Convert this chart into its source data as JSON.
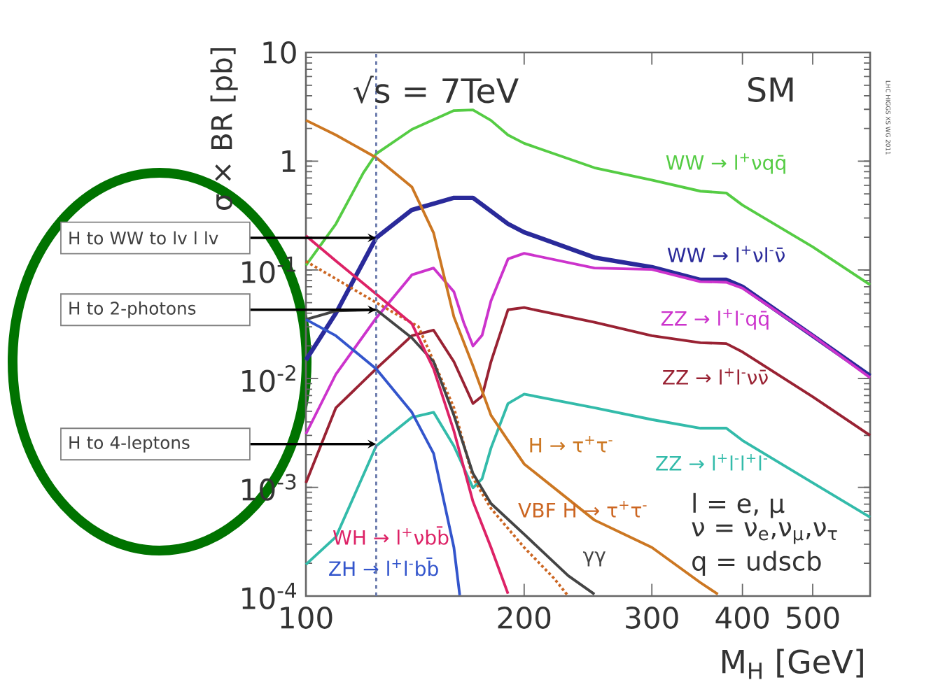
{
  "chart_data": {
    "type": "line",
    "xlabel": "M$_{H}$ [GeV]",
    "ylabel": "σ × BR [pb]",
    "log": "xy",
    "grid": false,
    "marker": "none",
    "xlim": [
      100,
      600
    ],
    "xticks": [
      100,
      200,
      300,
      400,
      500
    ],
    "ylim": [
      0.0001,
      10
    ],
    "yticks": [
      {
        "value": 0.0001,
        "label": "10$^{-4}$"
      },
      {
        "value": 0.001,
        "label": "10$^{-3}$"
      },
      {
        "value": 0.01,
        "label": "10$^{-2}$"
      },
      {
        "value": 0.1,
        "label": "10$^{-1}$"
      },
      1,
      10
    ],
    "ref_lines": [
      {
        "axis": "x",
        "value": 125,
        "color": "#6677aa",
        "line_style": "dashed"
      }
    ],
    "series": [
      {
        "name": "WW → l$^{+}$νqq̄",
        "color": "#55cc44",
        "x": [
          100,
          110,
          120,
          125,
          140,
          160,
          170,
          180,
          190,
          200,
          250,
          300,
          350,
          380,
          400,
          500,
          600
        ],
        "values": [
          0.11,
          0.265,
          0.78,
          1.17,
          1.96,
          2.92,
          2.96,
          2.37,
          1.74,
          1.46,
          0.87,
          0.67,
          0.53,
          0.51,
          0.395,
          0.163,
          0.073
        ]
      },
      {
        "name": "WW → l$^{+}$νl$^{-}$ν̄",
        "color": "#2a2a9a",
        "x": [
          100,
          110,
          125,
          140,
          160,
          170,
          190,
          200,
          250,
          300,
          350,
          380,
          400,
          500,
          600
        ],
        "values": [
          0.0148,
          0.04,
          0.197,
          0.356,
          0.46,
          0.46,
          0.265,
          0.222,
          0.13,
          0.106,
          0.081,
          0.081,
          0.07,
          0.0248,
          0.0106
        ]
      },
      {
        "name": "ZZ → l$^{+}$l$^{-}$qq̄",
        "color": "#cc33cc",
        "x": [
          100,
          110,
          125,
          140,
          150,
          160,
          165,
          170,
          175,
          180,
          190,
          200,
          250,
          300,
          350,
          380,
          400,
          500,
          600
        ],
        "values": [
          0.0031,
          0.011,
          0.036,
          0.09,
          0.104,
          0.063,
          0.033,
          0.02,
          0.025,
          0.052,
          0.126,
          0.142,
          0.104,
          0.101,
          0.078,
          0.077,
          0.068,
          0.0248,
          0.0102
        ]
      },
      {
        "name": "ZZ → l$^{+}$l$^{-}$νν̄",
        "color": "#992233",
        "x": [
          100,
          110,
          125,
          140,
          150,
          160,
          170,
          175,
          180,
          190,
          200,
          250,
          300,
          350,
          380,
          400,
          500,
          600
        ],
        "values": [
          0.0011,
          0.0054,
          0.0123,
          0.0248,
          0.0279,
          0.0143,
          0.0059,
          0.0069,
          0.0143,
          0.043,
          0.045,
          0.033,
          0.0248,
          0.0214,
          0.021,
          0.0176,
          0.0068,
          0.003
        ]
      },
      {
        "name": "ZZ → l$^{+}$l$^{-}$l$^{+}$l$^{-}$",
        "color": "#33bbaa",
        "x": [
          100,
          110,
          125,
          140,
          150,
          160,
          170,
          175,
          180,
          190,
          200,
          250,
          300,
          350,
          380,
          400,
          500,
          600
        ],
        "values": [
          0.000195,
          0.00035,
          0.0024,
          0.0044,
          0.0049,
          0.0024,
          0.00099,
          0.0012,
          0.0023,
          0.0059,
          0.0072,
          0.0054,
          0.0042,
          0.0035,
          0.0035,
          0.0027,
          0.0011,
          0.00053
        ]
      },
      {
        "name": "H → τ$^{+}$τ$^{-}$",
        "color": "#cc7722",
        "x": [
          100,
          110,
          125,
          140,
          150,
          160,
          170,
          180,
          190,
          200,
          250,
          300,
          350,
          370
        ],
        "values": [
          2.38,
          1.74,
          1.08,
          0.58,
          0.219,
          0.037,
          0.0131,
          0.0046,
          0.0027,
          0.00164,
          0.0005,
          0.00028,
          0.000133,
          0.000104
        ]
      },
      {
        "name": "VBF H → τ$^{+}$τ$^{-}$",
        "color": "#cc6622",
        "line_style": "dotted",
        "x": [
          100,
          125,
          143,
          160,
          170,
          180,
          200,
          220,
          230
        ],
        "values": [
          0.12,
          0.05,
          0.03,
          0.0054,
          0.00122,
          0.00064,
          0.00028,
          0.000145,
          0.0001
        ]
      },
      {
        "name": "γγ",
        "color": "#444444",
        "x": [
          100,
          110,
          125,
          140,
          150,
          160,
          170,
          180,
          200,
          230,
          250
        ],
        "values": [
          0.035,
          0.042,
          0.043,
          0.0237,
          0.0143,
          0.0046,
          0.00134,
          0.00071,
          0.00037,
          0.000154,
          0.000104
        ]
      },
      {
        "name": "WH → l$^{+}$νbb̄",
        "color": "#dd2266",
        "x": [
          100,
          110,
          125,
          140,
          150,
          160,
          170,
          180,
          190
        ],
        "values": [
          0.206,
          0.121,
          0.06,
          0.032,
          0.0123,
          0.0033,
          0.00074,
          0.00028,
          0.000105
        ]
      },
      {
        "name": "ZH → l$^{+}$l$^{-}$bb̄",
        "color": "#3355cc",
        "x": [
          100,
          110,
          125,
          140,
          150,
          160,
          163
        ],
        "values": [
          0.035,
          0.0248,
          0.0123,
          0.0049,
          0.00205,
          0.00028,
          0.000102
        ]
      }
    ],
    "annotations": [
      "√s = 7TeV",
      "SM",
      "l = e, μ",
      "ν = ν$_{e}$,ν$_{μ}$,ν$_{τ}$",
      "q = udscb",
      "LHC HIGGS XS WG 2011",
      "H to WW to lv l lv",
      "H to 2-photons",
      "H to 4-leptons"
    ]
  }
}
